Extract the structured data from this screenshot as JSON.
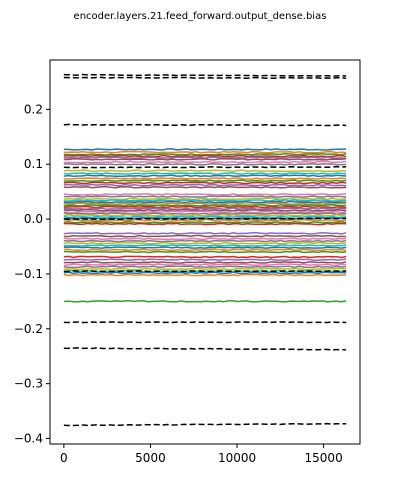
{
  "chart_data": {
    "type": "line",
    "title": "encoder.layers.21.feed_forward.output_dense.bias",
    "xlabel": "",
    "ylabel": "",
    "xlim": [
      -800,
      17100
    ],
    "ylim": [
      -0.41,
      0.29
    ],
    "x_ticks": [
      0,
      5000,
      10000,
      15000
    ],
    "x_tick_labels": [
      "0",
      "5000",
      "10000",
      "15000"
    ],
    "y_ticks": [
      0.2,
      0.1,
      0.0,
      -0.1,
      -0.2,
      -0.3,
      -0.4
    ],
    "y_tick_labels": [
      "0.2",
      "0.1",
      "0.0",
      "−0.1",
      "−0.2",
      "−0.3",
      "−0.4"
    ],
    "x_range": [
      0,
      16300
    ],
    "grid": false,
    "legend": "none",
    "palette": [
      "#1f77b4",
      "#ff7f0e",
      "#2ca02c",
      "#d62728",
      "#9467bd",
      "#8c564b",
      "#e377c2",
      "#7f7f7f",
      "#bcbd22",
      "#17becf"
    ],
    "solid_series_levels": [
      0.127,
      0.122,
      0.118,
      0.115,
      0.112,
      0.109,
      0.104,
      0.1,
      0.088,
      0.083,
      0.079,
      0.074,
      0.07,
      0.066,
      0.062,
      0.058,
      0.045,
      0.041,
      0.037,
      0.034,
      0.031,
      0.028,
      0.025,
      0.022,
      0.019,
      0.016,
      0.013,
      0.01,
      0.007,
      0.004,
      0.001,
      -0.002,
      -0.006,
      -0.009,
      -0.026,
      -0.031,
      -0.036,
      -0.04,
      -0.044,
      -0.048,
      -0.052,
      -0.056,
      -0.06,
      -0.069,
      -0.074,
      -0.079,
      -0.083,
      -0.087,
      -0.091,
      -0.095,
      -0.098,
      -0.102,
      -0.15
    ],
    "dashed_series": [
      {
        "start": 0.263,
        "end": 0.261
      },
      {
        "start": 0.258,
        "end": 0.257
      },
      {
        "start": 0.172,
        "end": 0.171
      },
      {
        "start": 0.094,
        "end": 0.095
      },
      {
        "start": 0.0,
        "end": 0.001
      },
      {
        "start": -0.095,
        "end": -0.095
      },
      {
        "start": -0.188,
        "end": -0.188
      },
      {
        "start": -0.235,
        "end": -0.238
      },
      {
        "start": -0.376,
        "end": -0.373
      }
    ],
    "dashed_color": "#000000"
  }
}
